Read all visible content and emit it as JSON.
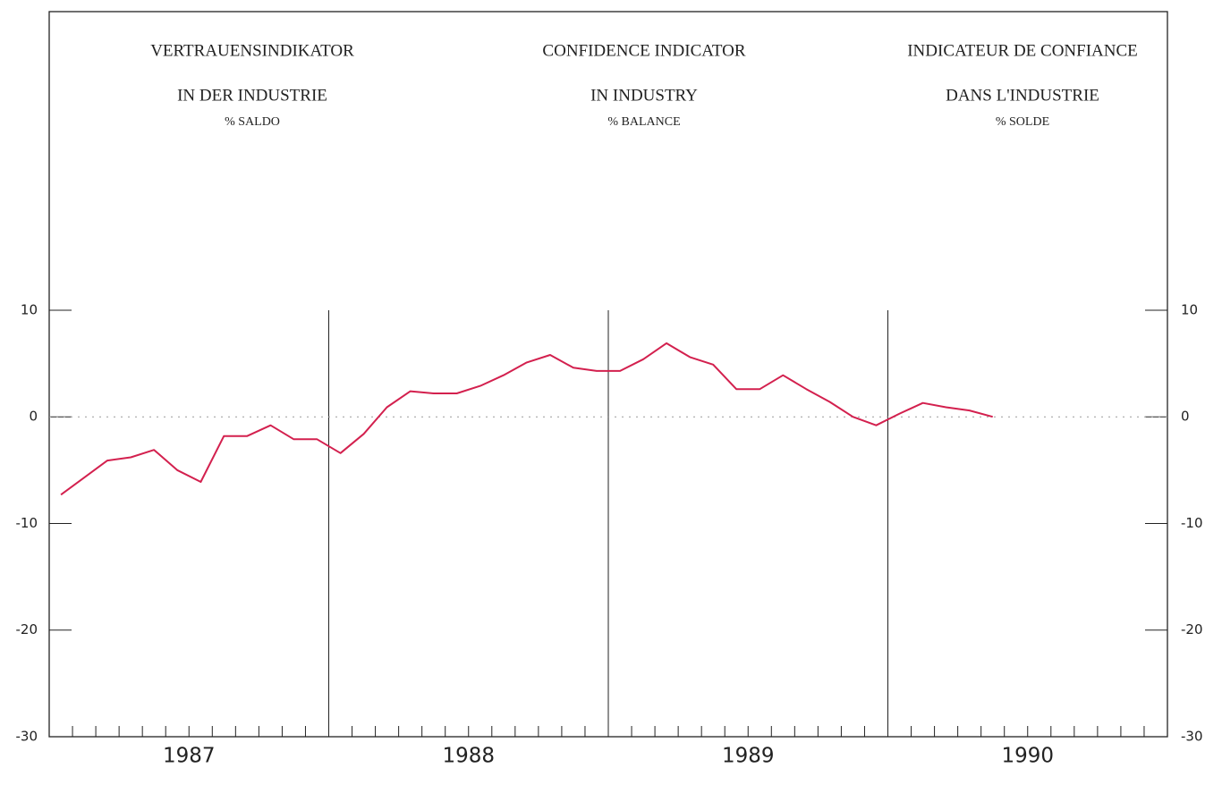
{
  "chart_data": {
    "type": "line",
    "titles": [
      [
        "VERTRAUENSINDIKATOR",
        "IN DER INDUSTRIE",
        "% SALDO"
      ],
      [
        "CONFIDENCE INDICATOR",
        "IN INDUSTRY",
        "% BALANCE"
      ],
      [
        "INDICATEUR DE CONFIANCE",
        "DANS L'INDUSTRIE",
        "% SOLDE"
      ]
    ],
    "x": [
      1987.042,
      1987.125,
      1987.208,
      1987.292,
      1987.375,
      1987.458,
      1987.542,
      1987.625,
      1987.708,
      1987.792,
      1987.875,
      1987.958,
      1988.042,
      1988.125,
      1988.208,
      1988.292,
      1988.375,
      1988.458,
      1988.542,
      1988.625,
      1988.708,
      1988.792,
      1988.875,
      1988.958,
      1989.042,
      1989.125,
      1989.208,
      1989.292,
      1989.375,
      1989.458,
      1989.542,
      1989.625,
      1989.708,
      1989.792,
      1989.875,
      1989.958,
      1990.042,
      1990.125,
      1990.208,
      1990.292,
      1990.375
    ],
    "series": [
      {
        "color": "#d3204e",
        "values": [
          -7.3,
          -5.7,
          -4.1,
          -3.8,
          -3.1,
          -5.0,
          -6.1,
          -1.8,
          -1.8,
          -0.8,
          -2.1,
          -2.1,
          -3.4,
          -1.6,
          0.9,
          2.4,
          2.2,
          2.2,
          2.9,
          3.9,
          5.1,
          5.8,
          4.6,
          4.3,
          4.3,
          5.4,
          6.9,
          5.6,
          4.9,
          2.6,
          2.6,
          3.9,
          2.6,
          1.4,
          0,
          -0.8,
          0.3,
          1.3,
          0.9,
          0.6,
          0
        ]
      }
    ],
    "xlim": [
      1987,
      1991
    ],
    "xticks": [
      {
        "value": 1987.5,
        "label": "1987"
      },
      {
        "value": 1988.5,
        "label": "1988"
      },
      {
        "value": 1989.5,
        "label": "1989"
      },
      {
        "value": 1990.5,
        "label": "1990"
      }
    ],
    "vlines": [
      1988,
      1989,
      1990
    ],
    "hline": 0,
    "ylim": [
      -30,
      38
    ],
    "yticks": [
      -30,
      -20,
      -10,
      0,
      10
    ]
  }
}
